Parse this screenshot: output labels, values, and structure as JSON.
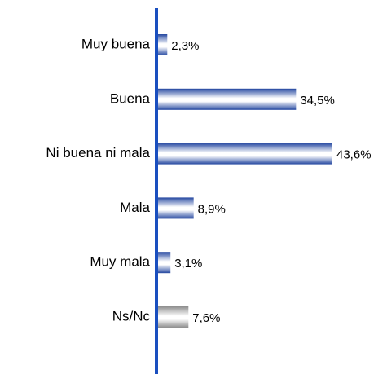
{
  "chart_data": {
    "type": "hbar",
    "categories": [
      "Muy buena",
      "Buena",
      "Ni buena ni mala",
      "Mala",
      "Muy mala",
      "Ns/Nc"
    ],
    "values": [
      2.3,
      34.5,
      43.6,
      8.9,
      3.1,
      7.6
    ],
    "value_labels": [
      "2,3%",
      "34,5%",
      "43,6%",
      "8,9%",
      "3,1%",
      "7,6%"
    ],
    "colors": [
      "#2447a0",
      "#2447a0",
      "#2447a0",
      "#2447a0",
      "#2447a0",
      "#8c8c8c"
    ],
    "axis_color": "#1a4fbf"
  }
}
